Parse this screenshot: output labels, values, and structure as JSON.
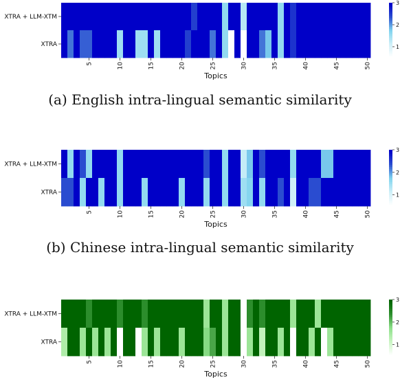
{
  "colors": {
    "blue_scale": [
      "#ffffff",
      "#cdeff8",
      "#7fd3ee",
      "#2c4fd0",
      "#0000c8"
    ],
    "green_scale": [
      "#ffffff",
      "#c9f5c2",
      "#8ee08a",
      "#2e8f2e",
      "#006400"
    ]
  },
  "chart_data": [
    {
      "type": "heatmap",
      "caption": "(a) English intra-lingual semantic similarity",
      "rows": [
        "XTRA + LLM-XTM",
        "XTRA"
      ],
      "xlabel": "Topics",
      "x_ticks": [
        5,
        10,
        15,
        20,
        25,
        30,
        35,
        40,
        45,
        50
      ],
      "colorbar_ticks": [
        1,
        2,
        3
      ],
      "vmin": 0.5,
      "vmax": 3,
      "palette": "blue",
      "values": [
        [
          3,
          3,
          3,
          3,
          3,
          3,
          3,
          3,
          3,
          3,
          3,
          3,
          3,
          3,
          3,
          3,
          3,
          3,
          3,
          3,
          3,
          2.5,
          3,
          3,
          3,
          3,
          1.6,
          3,
          3,
          1.3,
          3,
          3,
          3,
          3,
          3,
          1.6,
          3,
          2.6,
          3,
          3,
          3,
          3,
          3,
          3,
          3,
          3,
          3,
          3,
          3,
          3
        ],
        [
          3,
          2.2,
          3,
          2.3,
          2.3,
          3,
          3,
          3,
          3,
          1.5,
          3,
          3,
          1.5,
          1.5,
          3,
          1.5,
          3,
          3,
          3,
          3,
          2.5,
          3,
          3,
          3,
          2.2,
          3,
          1.6,
          0.5,
          3,
          0.5,
          3,
          3,
          2.2,
          1.8,
          3,
          1.6,
          3,
          2.6,
          3,
          3,
          3,
          3,
          3,
          3,
          3,
          3,
          3,
          3,
          3,
          3
        ]
      ]
    },
    {
      "type": "heatmap",
      "caption": "(b) Chinese intra-lingual semantic similarity",
      "rows": [
        "XTRA + LLM-XTM",
        "XTRA"
      ],
      "xlabel": "Topics",
      "x_ticks": [
        5,
        10,
        15,
        20,
        25,
        30,
        35,
        40,
        45,
        50
      ],
      "colorbar_ticks": [
        1,
        2,
        3
      ],
      "vmin": 0.5,
      "vmax": 3,
      "palette": "blue",
      "values": [
        [
          3,
          1.6,
          3,
          2.4,
          1.6,
          3,
          3,
          3,
          3,
          1.6,
          3,
          3,
          3,
          3,
          3,
          3,
          3,
          3,
          3,
          3,
          3,
          3,
          3,
          2.4,
          3,
          3,
          1.6,
          3,
          3,
          1.2,
          1.8,
          3,
          2.4,
          3,
          3,
          3,
          3,
          1.6,
          3,
          3,
          3,
          3,
          1.8,
          1.8,
          3,
          3,
          3,
          3,
          3,
          3
        ],
        [
          2.4,
          2.4,
          3,
          1.6,
          3,
          3,
          1.6,
          3,
          3,
          1.6,
          3,
          3,
          3,
          1.6,
          3,
          3,
          3,
          3,
          3,
          1.6,
          3,
          3,
          3,
          1.6,
          3,
          3,
          1.6,
          3,
          3,
          1.5,
          1.7,
          3,
          1.6,
          3,
          3,
          2.4,
          3,
          1.1,
          3,
          3,
          2.4,
          2.4,
          3,
          3,
          3,
          3,
          3,
          3,
          3,
          3
        ]
      ]
    },
    {
      "type": "heatmap",
      "caption": "",
      "rows": [
        "XTRA + LLM-XTM",
        "XTRA"
      ],
      "xlabel": "Topics",
      "x_ticks": [
        5,
        10,
        15,
        20,
        25,
        30,
        35,
        40,
        45,
        50
      ],
      "colorbar_ticks": [
        1,
        2,
        3
      ],
      "vmin": 0.5,
      "vmax": 3,
      "palette": "green",
      "values": [
        [
          3,
          3,
          3,
          3,
          2.4,
          3,
          3,
          3,
          3,
          2.4,
          3,
          3,
          3,
          2.4,
          3,
          3,
          3,
          3,
          3,
          3,
          3,
          3,
          3,
          1.6,
          3,
          3,
          1.6,
          3,
          3,
          0.5,
          2.4,
          3,
          2.4,
          3,
          3,
          3,
          3,
          1.6,
          3,
          3,
          3,
          1.6,
          3,
          3,
          3,
          3,
          3,
          3,
          3,
          3
        ],
        [
          1.4,
          3,
          3,
          1.6,
          3,
          1.6,
          3,
          1.6,
          3,
          0.5,
          3,
          3,
          0.5,
          1.6,
          3,
          1.6,
          3,
          3,
          3,
          1.6,
          3,
          3,
          3,
          1.8,
          2.2,
          3,
          1.6,
          3,
          3,
          0.5,
          1.6,
          3,
          1.2,
          3,
          3,
          1.6,
          3,
          0.5,
          3,
          3,
          1.6,
          3,
          0.5,
          1.6,
          3,
          3,
          3,
          3,
          3,
          3
        ]
      ]
    }
  ]
}
